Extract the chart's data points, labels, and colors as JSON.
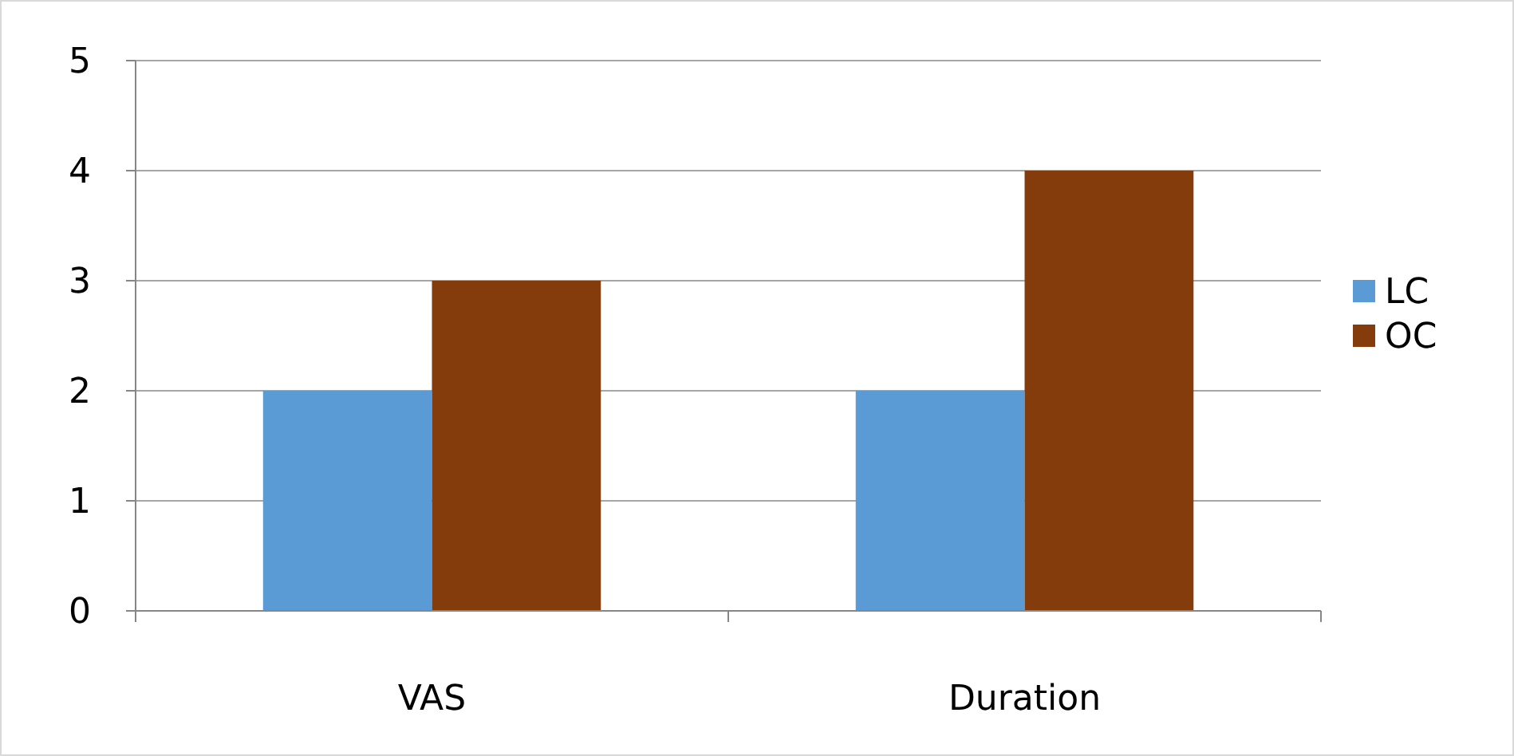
{
  "chart_data": {
    "type": "bar",
    "categories": [
      "VAS",
      "Duration"
    ],
    "series": [
      {
        "name": "LC",
        "color": "#5b9bd5",
        "values": [
          2,
          2
        ]
      },
      {
        "name": "OC",
        "color": "#843c0c",
        "values": [
          3,
          4
        ]
      }
    ],
    "ylim": [
      0,
      5
    ],
    "yticks": [
      0,
      1,
      2,
      3,
      4,
      5
    ],
    "grid": "y",
    "legend": "right"
  }
}
